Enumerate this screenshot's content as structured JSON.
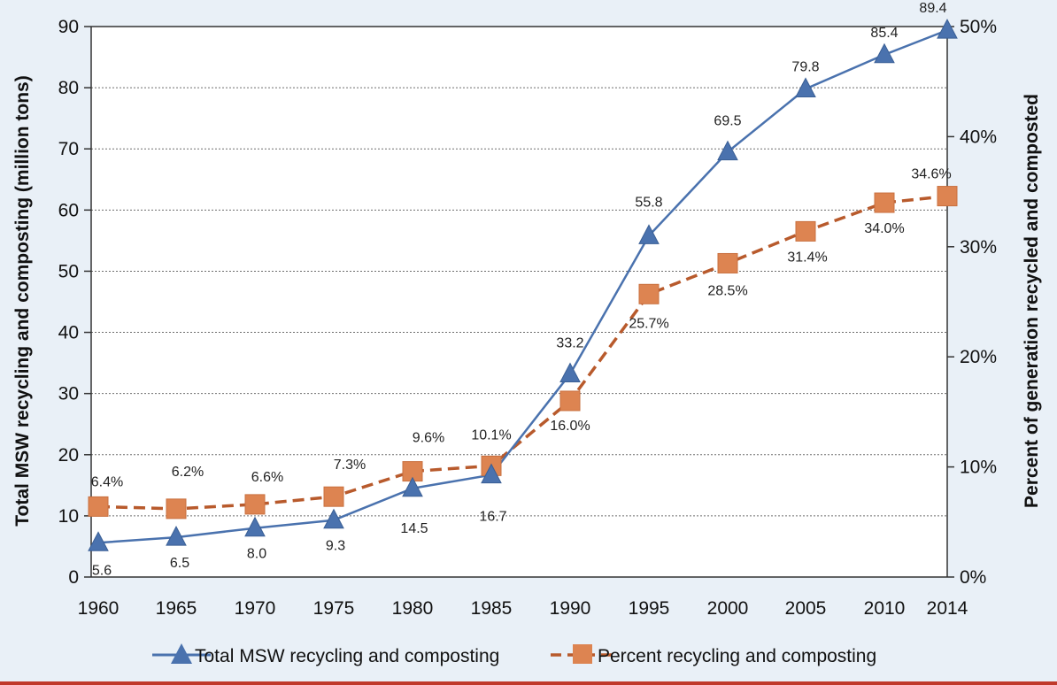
{
  "chart_data": {
    "type": "line",
    "title": "",
    "x": [
      "1960",
      "1965",
      "1970",
      "1975",
      "1980",
      "1985",
      "1990",
      "1995",
      "2000",
      "2005",
      "2010",
      "2014"
    ],
    "xlabel": "",
    "ylabel_left": "Total MSW recycling and composting (million tons)",
    "ylabel_right": "Percent of generation recycled and composted",
    "ylim_left": [
      0,
      90
    ],
    "ylim_right": [
      0,
      50
    ],
    "yticks_left": [
      "0",
      "10",
      "20",
      "30",
      "40",
      "50",
      "60",
      "70",
      "80",
      "90"
    ],
    "yticks_right": [
      "0%",
      "10%",
      "20%",
      "30%",
      "40%",
      "50%"
    ],
    "grid": "horizontal dotted",
    "legend_position": "bottom",
    "series": [
      {
        "name": "Total MSW recycling and composting",
        "axis": "left",
        "marker": "triangle",
        "line_style": "solid",
        "color": "#4a72ae",
        "values": [
          5.6,
          6.5,
          8.0,
          9.3,
          14.5,
          16.7,
          33.2,
          55.8,
          69.5,
          79.8,
          85.4,
          89.4
        ],
        "labels": [
          "5.6",
          "6.5",
          "8.0",
          "9.3",
          "14.5",
          "16.7",
          "33.2",
          "55.8",
          "69.5",
          "79.8",
          "85.4",
          "89.4"
        ]
      },
      {
        "name": "Percent recycling and composting",
        "axis": "right",
        "marker": "square",
        "line_style": "dashed",
        "color": "#dd8451",
        "line_color": "#b85a2c",
        "values": [
          6.4,
          6.2,
          6.6,
          7.3,
          9.6,
          10.1,
          16.0,
          25.7,
          28.5,
          31.4,
          34.0,
          34.6
        ],
        "labels": [
          "6.4%",
          "6.2%",
          "6.6%",
          "7.3%",
          "9.6%",
          "10.1%",
          "16.0%",
          "25.7%",
          "28.5%",
          "31.4%",
          "34.0%",
          "34.6%"
        ]
      }
    ]
  }
}
